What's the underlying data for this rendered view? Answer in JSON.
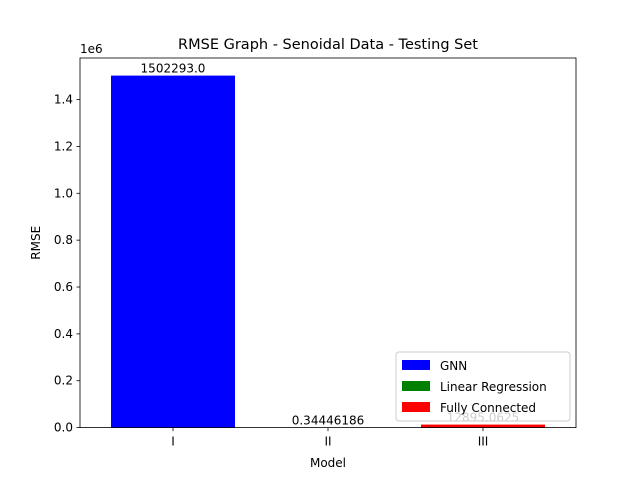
{
  "chart_data": {
    "type": "bar",
    "title": "RMSE Graph - Senoidal Data - Testing Set",
    "xlabel": "Model",
    "ylabel": "RMSE",
    "y_offset_label": "1e6",
    "categories": [
      "I",
      "II",
      "III"
    ],
    "series": [
      {
        "name": "GNN",
        "category": "I",
        "value": 1502293.0,
        "label": "1502293.0",
        "color": "#0000ff"
      },
      {
        "name": "Linear Regression",
        "category": "II",
        "value": 0.34446186,
        "label": "0.34446186",
        "color": "#008000"
      },
      {
        "name": "Fully Connected",
        "category": "III",
        "value": 12895.0625,
        "label": "12895.0625",
        "color": "#ff0000"
      }
    ],
    "yticks": [
      0.0,
      0.2,
      0.4,
      0.6,
      0.8,
      1.0,
      1.2,
      1.4
    ],
    "ytick_labels": [
      "0.0",
      "0.2",
      "0.4",
      "0.6",
      "0.8",
      "1.0",
      "1.2",
      "1.4"
    ],
    "ylim": [
      0,
      1577407.65
    ],
    "grid": false,
    "legend_position": "lower-right"
  }
}
